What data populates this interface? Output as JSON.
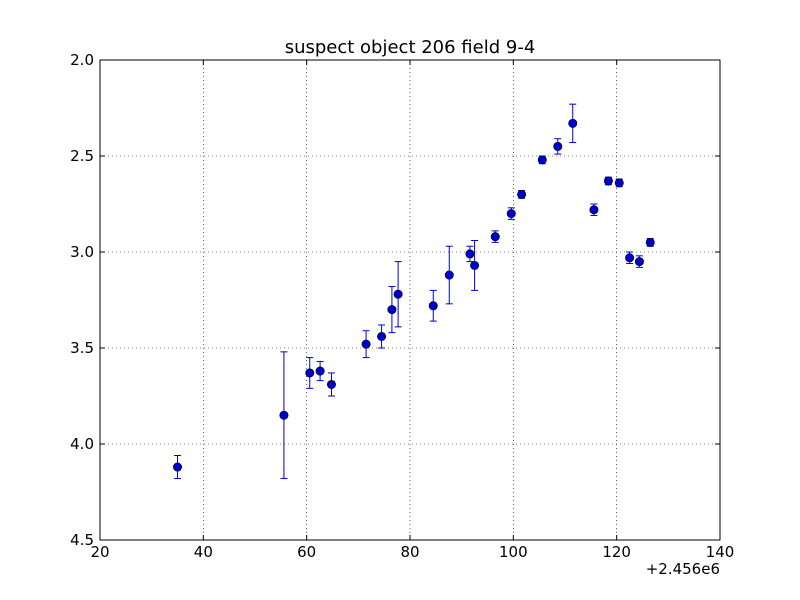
{
  "chart_data": {
    "type": "scatter",
    "title": "suspect object 206 field 9-4",
    "xlabel": "",
    "ylabel": "",
    "x_offset_label": "+2.456e6",
    "xlim": [
      20,
      140
    ],
    "ylim": [
      4.5,
      2.0
    ],
    "y_inverted": true,
    "grid": true,
    "x_ticks": [
      "20",
      "40",
      "60",
      "80",
      "100",
      "120",
      "140"
    ],
    "y_ticks": [
      "2.0",
      "2.5",
      "3.0",
      "3.5",
      "4.0",
      "4.5"
    ],
    "marker_color": "#0000cc",
    "points": [
      {
        "x": 35.0,
        "y": 4.12,
        "err": 0.06
      },
      {
        "x": 55.6,
        "y": 3.85,
        "err": 0.33
      },
      {
        "x": 60.6,
        "y": 3.63,
        "err": 0.08
      },
      {
        "x": 62.6,
        "y": 3.62,
        "err": 0.05
      },
      {
        "x": 64.8,
        "y": 3.69,
        "err": 0.06
      },
      {
        "x": 71.5,
        "y": 3.48,
        "err": 0.07
      },
      {
        "x": 74.5,
        "y": 3.44,
        "err": 0.06
      },
      {
        "x": 76.5,
        "y": 3.3,
        "err": 0.12
      },
      {
        "x": 77.7,
        "y": 3.22,
        "err": 0.17
      },
      {
        "x": 84.5,
        "y": 3.28,
        "err": 0.08
      },
      {
        "x": 87.6,
        "y": 3.12,
        "err": 0.15
      },
      {
        "x": 91.6,
        "y": 3.01,
        "err": 0.04
      },
      {
        "x": 92.5,
        "y": 3.07,
        "err": 0.13
      },
      {
        "x": 96.5,
        "y": 2.92,
        "err": 0.03
      },
      {
        "x": 99.6,
        "y": 2.8,
        "err": 0.03
      },
      {
        "x": 101.6,
        "y": 2.7,
        "err": 0.02
      },
      {
        "x": 105.6,
        "y": 2.52,
        "err": 0.02
      },
      {
        "x": 108.6,
        "y": 2.45,
        "err": 0.04
      },
      {
        "x": 111.5,
        "y": 2.33,
        "err": 0.1
      },
      {
        "x": 115.6,
        "y": 2.78,
        "err": 0.03
      },
      {
        "x": 118.4,
        "y": 2.63,
        "err": 0.02
      },
      {
        "x": 120.5,
        "y": 2.64,
        "err": 0.02
      },
      {
        "x": 122.5,
        "y": 3.03,
        "err": 0.03
      },
      {
        "x": 124.4,
        "y": 3.05,
        "err": 0.03
      },
      {
        "x": 126.5,
        "y": 2.95,
        "err": 0.02
      }
    ]
  }
}
